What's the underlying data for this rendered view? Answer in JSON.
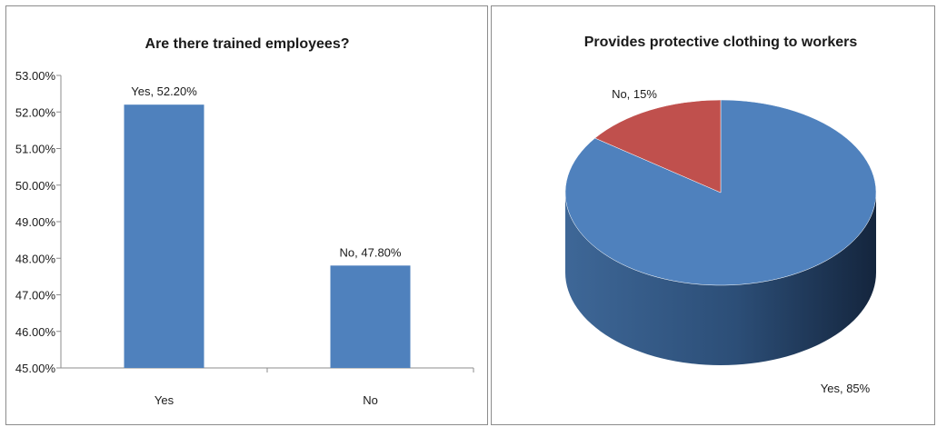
{
  "chart_data": [
    {
      "type": "bar",
      "title": "Are there trained employees?",
      "categories": [
        "Yes",
        "No"
      ],
      "series": [
        {
          "values": [
            52.2,
            47.8
          ]
        }
      ],
      "data_labels": [
        "Yes, 52.20%",
        "No, 47.80%"
      ],
      "ylim": [
        45,
        53
      ],
      "y_ticks": [
        "45.00%",
        "46.00%",
        "47.00%",
        "48.00%",
        "49.00%",
        "50.00%",
        "51.00%",
        "52.00%",
        "53.00%"
      ],
      "xlabel": "",
      "ylabel": "",
      "grid": false,
      "colors": {
        "bar": "#4f81bd"
      }
    },
    {
      "type": "pie",
      "style": "3d",
      "title": "Provides protective clothing to workers",
      "labels": [
        "Yes",
        "No"
      ],
      "values": [
        85,
        15
      ],
      "data_labels": [
        "Yes, 85%",
        "No, 15%"
      ],
      "colors": {
        "Yes": "#4f81bd",
        "No": "#c0504d"
      }
    }
  ]
}
